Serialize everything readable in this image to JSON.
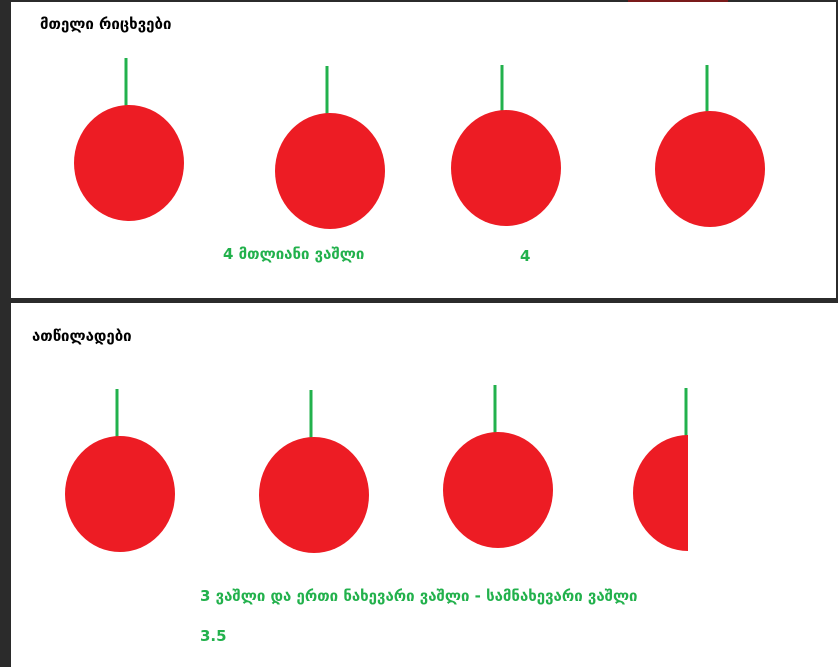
{
  "colors": {
    "apple": "#ed1c24",
    "stem": "#22b14c",
    "caption": "#22b14c",
    "heading": "#000000",
    "background": "#ffffff",
    "frame": "#2b2b2b"
  },
  "whole_section": {
    "heading": "მთელი რიცხვები",
    "apple_count": 4,
    "caption": "4 მთლიანი ვაშლი",
    "value": "4"
  },
  "fraction_section": {
    "heading": "ათწილადები",
    "whole_apple_count": 3,
    "half_apple_count": 1,
    "caption": "3 ვაშლი და ერთი ნახევარი ვაშლი - სამნახევარი ვაშლი",
    "value": "3.5"
  }
}
